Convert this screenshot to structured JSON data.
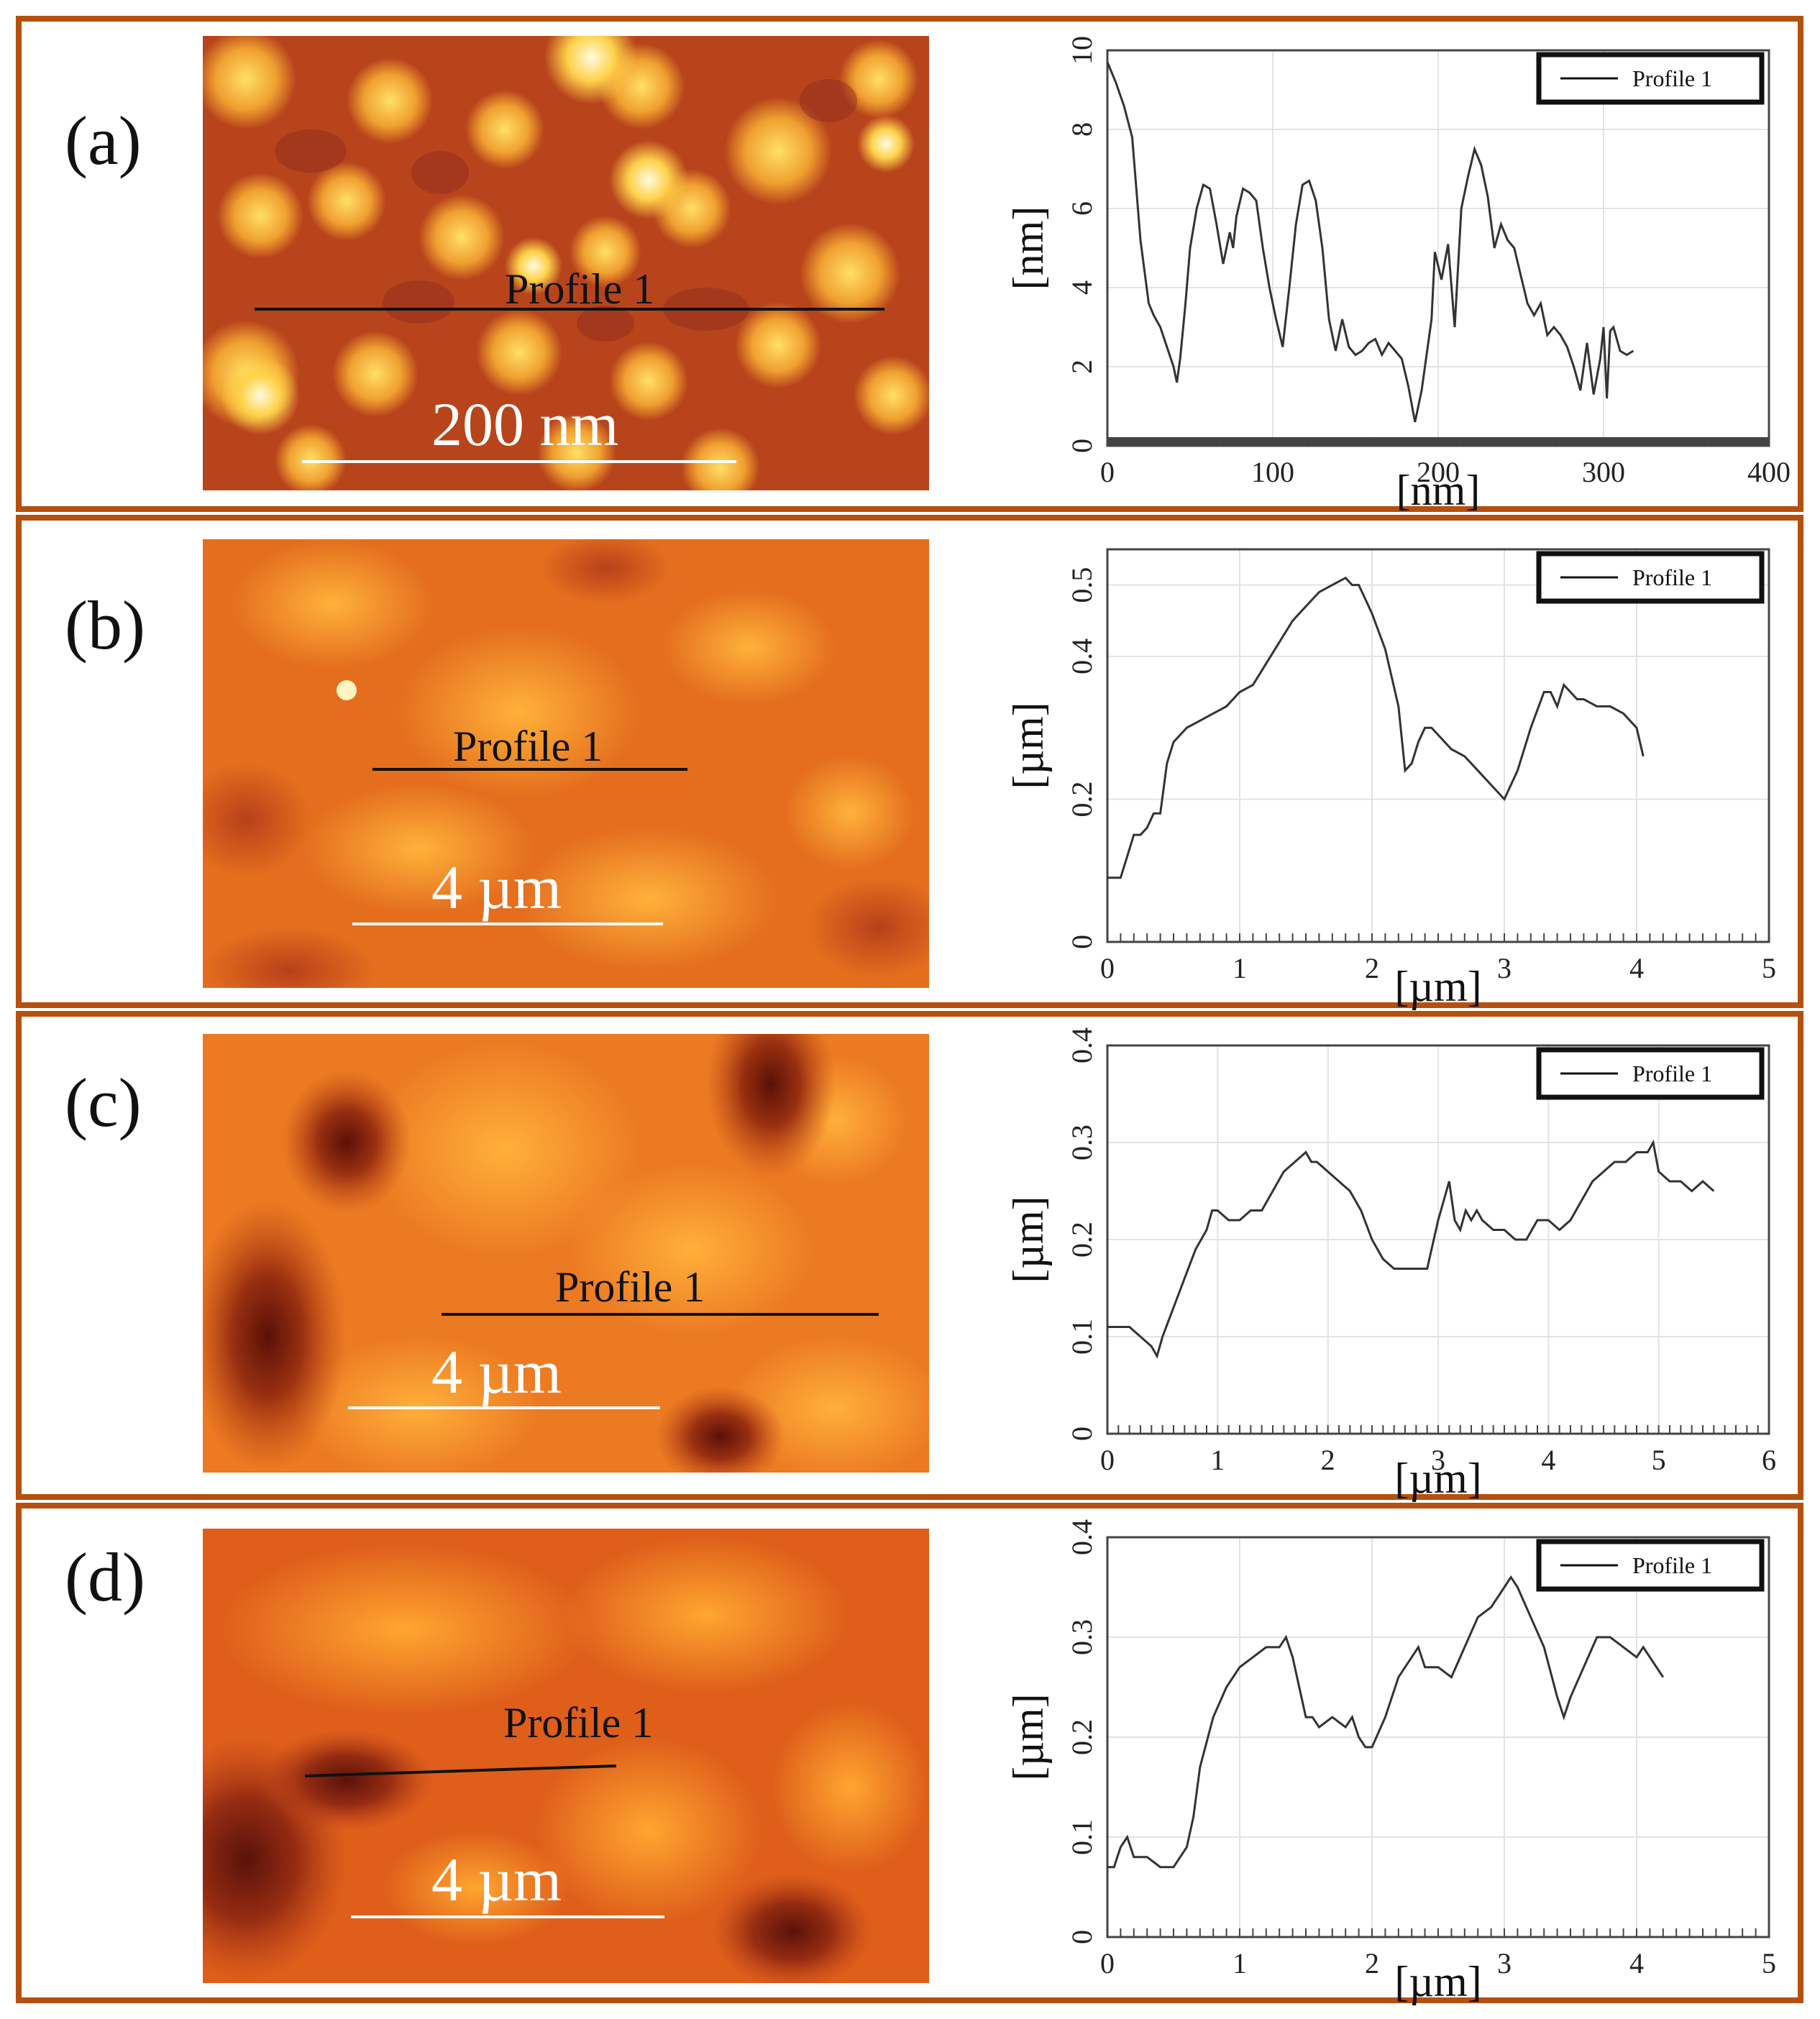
{
  "colors": {
    "frame": "#b5500f",
    "line": "#333333",
    "grid": "#e3e3e3"
  },
  "chart_data": [
    {
      "type": "line",
      "panel": "(a)",
      "profile_label": "Profile 1",
      "scale_bar": "200 nm",
      "xlabel": "[nm]",
      "ylabel": "[nm]",
      "xlim": [
        0,
        400
      ],
      "ylim": [
        0,
        10
      ],
      "xticks": [
        "0",
        "100",
        "200",
        "300",
        "400"
      ],
      "yticks": [
        "0",
        "2",
        "4",
        "6",
        "8",
        "10"
      ],
      "legend": "Profile 1",
      "series": [
        {
          "name": "Profile 1",
          "x": [
            0,
            5,
            10,
            15,
            20,
            25,
            28,
            32,
            36,
            40,
            42,
            44,
            47,
            50,
            54,
            58,
            62,
            66,
            70,
            74,
            76,
            78,
            82,
            86,
            90,
            94,
            98,
            102,
            106,
            110,
            114,
            118,
            122,
            126,
            130,
            134,
            138,
            142,
            146,
            150,
            154,
            158,
            162,
            166,
            170,
            174,
            178,
            182,
            186,
            190,
            194,
            196,
            198,
            202,
            206,
            210,
            212,
            214,
            218,
            222,
            226,
            230,
            234,
            238,
            242,
            246,
            250,
            254,
            258,
            262,
            266,
            270,
            274,
            278,
            282,
            286,
            290,
            294,
            298,
            300,
            302,
            304,
            306,
            308,
            310,
            314,
            318
          ],
          "y": [
            9.7,
            9.2,
            8.6,
            7.8,
            5.2,
            3.6,
            3.3,
            3.0,
            2.5,
            2.0,
            1.6,
            2.2,
            3.5,
            5.0,
            6.0,
            6.6,
            6.5,
            5.6,
            4.6,
            5.4,
            5.0,
            5.8,
            6.5,
            6.4,
            6.2,
            5.0,
            4.0,
            3.2,
            2.5,
            4.0,
            5.6,
            6.6,
            6.7,
            6.2,
            5.0,
            3.2,
            2.4,
            3.2,
            2.5,
            2.3,
            2.4,
            2.6,
            2.7,
            2.3,
            2.6,
            2.4,
            2.2,
            1.5,
            0.6,
            1.4,
            2.6,
            3.2,
            4.9,
            4.2,
            5.1,
            3.0,
            4.5,
            6.0,
            6.8,
            7.5,
            7.1,
            6.3,
            5.0,
            5.6,
            5.2,
            5.0,
            4.3,
            3.6,
            3.3,
            3.6,
            2.8,
            3.0,
            2.8,
            2.5,
            2.0,
            1.4,
            2.6,
            1.3,
            2.2,
            3.0,
            1.2,
            2.9,
            3.0,
            2.7,
            2.4,
            2.3,
            2.4
          ]
        }
      ]
    },
    {
      "type": "line",
      "panel": "(b)",
      "profile_label": "Profile 1",
      "scale_bar": "4 µm",
      "xlabel": "[µm]",
      "ylabel": "[µm]",
      "xlim": [
        0,
        5
      ],
      "ylim": [
        0,
        0.55
      ],
      "xticks": [
        "0",
        "1",
        "2",
        "3",
        "4",
        "5"
      ],
      "yticks": [
        "0",
        "0.2",
        "0.4",
        "0.5"
      ],
      "legend": "Profile 1",
      "series": [
        {
          "name": "Profile 1",
          "x": [
            0,
            0.1,
            0.15,
            0.2,
            0.25,
            0.3,
            0.35,
            0.4,
            0.45,
            0.5,
            0.55,
            0.6,
            0.7,
            0.8,
            0.9,
            1.0,
            1.1,
            1.2,
            1.3,
            1.4,
            1.5,
            1.6,
            1.7,
            1.8,
            1.85,
            1.9,
            1.95,
            2.0,
            2.1,
            2.2,
            2.25,
            2.3,
            2.35,
            2.4,
            2.45,
            2.5,
            2.6,
            2.7,
            2.8,
            2.9,
            3.0,
            3.1,
            3.2,
            3.3,
            3.35,
            3.4,
            3.45,
            3.5,
            3.55,
            3.6,
            3.7,
            3.8,
            3.9,
            4.0,
            4.05
          ],
          "y": [
            0.09,
            0.09,
            0.12,
            0.15,
            0.15,
            0.16,
            0.18,
            0.18,
            0.25,
            0.28,
            0.29,
            0.3,
            0.31,
            0.32,
            0.33,
            0.35,
            0.36,
            0.39,
            0.42,
            0.45,
            0.47,
            0.49,
            0.5,
            0.51,
            0.5,
            0.5,
            0.48,
            0.46,
            0.41,
            0.33,
            0.24,
            0.25,
            0.28,
            0.3,
            0.3,
            0.29,
            0.27,
            0.26,
            0.24,
            0.22,
            0.2,
            0.24,
            0.3,
            0.35,
            0.35,
            0.33,
            0.36,
            0.35,
            0.34,
            0.34,
            0.33,
            0.33,
            0.32,
            0.3,
            0.26
          ]
        }
      ]
    },
    {
      "type": "line",
      "panel": "(c)",
      "profile_label": "Profile 1",
      "scale_bar": "4 µm",
      "xlabel": "[µm]",
      "ylabel": "[µm]",
      "xlim": [
        0,
        6
      ],
      "ylim": [
        0,
        0.4
      ],
      "xticks": [
        "0",
        "1",
        "2",
        "3",
        "4",
        "5",
        "6"
      ],
      "yticks": [
        "0",
        "0.1",
        "0.2",
        "0.3",
        "0.4"
      ],
      "legend": "Profile 1",
      "series": [
        {
          "name": "Profile 1",
          "x": [
            0,
            0.1,
            0.2,
            0.3,
            0.4,
            0.45,
            0.5,
            0.6,
            0.7,
            0.8,
            0.9,
            0.95,
            1.0,
            1.1,
            1.2,
            1.3,
            1.4,
            1.5,
            1.6,
            1.7,
            1.8,
            1.85,
            1.9,
            2.0,
            2.1,
            2.2,
            2.3,
            2.4,
            2.5,
            2.6,
            2.7,
            2.8,
            2.9,
            3.0,
            3.05,
            3.1,
            3.15,
            3.2,
            3.25,
            3.3,
            3.35,
            3.4,
            3.5,
            3.6,
            3.7,
            3.8,
            3.9,
            4.0,
            4.1,
            4.2,
            4.3,
            4.4,
            4.5,
            4.6,
            4.7,
            4.8,
            4.9,
            4.95,
            5.0,
            5.1,
            5.2,
            5.3,
            5.4,
            5.5
          ],
          "y": [
            0.11,
            0.11,
            0.11,
            0.1,
            0.09,
            0.08,
            0.1,
            0.13,
            0.16,
            0.19,
            0.21,
            0.23,
            0.23,
            0.22,
            0.22,
            0.23,
            0.23,
            0.25,
            0.27,
            0.28,
            0.29,
            0.28,
            0.28,
            0.27,
            0.26,
            0.25,
            0.23,
            0.2,
            0.18,
            0.17,
            0.17,
            0.17,
            0.17,
            0.22,
            0.24,
            0.26,
            0.22,
            0.21,
            0.23,
            0.22,
            0.23,
            0.22,
            0.21,
            0.21,
            0.2,
            0.2,
            0.22,
            0.22,
            0.21,
            0.22,
            0.24,
            0.26,
            0.27,
            0.28,
            0.28,
            0.29,
            0.29,
            0.3,
            0.27,
            0.26,
            0.26,
            0.25,
            0.26,
            0.25
          ]
        }
      ]
    },
    {
      "type": "line",
      "panel": "(d)",
      "profile_label": "Profile 1",
      "scale_bar": "4 µm",
      "xlabel": "[µm]",
      "ylabel": "[µm]",
      "xlim": [
        0,
        5
      ],
      "ylim": [
        0,
        0.4
      ],
      "xticks": [
        "0",
        "1",
        "2",
        "3",
        "4",
        "5"
      ],
      "yticks": [
        "0",
        "0.1",
        "0.2",
        "0.3",
        "0.4"
      ],
      "legend": "Profile 1",
      "series": [
        {
          "name": "Profile 1",
          "x": [
            0,
            0.05,
            0.1,
            0.15,
            0.2,
            0.25,
            0.3,
            0.4,
            0.5,
            0.55,
            0.6,
            0.65,
            0.7,
            0.8,
            0.9,
            1.0,
            1.1,
            1.2,
            1.3,
            1.35,
            1.4,
            1.45,
            1.5,
            1.55,
            1.6,
            1.7,
            1.8,
            1.85,
            1.9,
            1.95,
            2.0,
            2.1,
            2.2,
            2.3,
            2.35,
            2.4,
            2.45,
            2.5,
            2.6,
            2.7,
            2.8,
            2.9,
            3.0,
            3.05,
            3.1,
            3.2,
            3.3,
            3.4,
            3.45,
            3.5,
            3.6,
            3.7,
            3.8,
            3.9,
            4.0,
            4.05,
            4.1,
            4.15,
            4.2
          ],
          "y": [
            0.07,
            0.07,
            0.09,
            0.1,
            0.08,
            0.08,
            0.08,
            0.07,
            0.07,
            0.08,
            0.09,
            0.12,
            0.17,
            0.22,
            0.25,
            0.27,
            0.28,
            0.29,
            0.29,
            0.3,
            0.28,
            0.25,
            0.22,
            0.22,
            0.21,
            0.22,
            0.21,
            0.22,
            0.2,
            0.19,
            0.19,
            0.22,
            0.26,
            0.28,
            0.29,
            0.27,
            0.27,
            0.27,
            0.26,
            0.29,
            0.32,
            0.33,
            0.35,
            0.36,
            0.35,
            0.32,
            0.29,
            0.24,
            0.22,
            0.24,
            0.27,
            0.3,
            0.3,
            0.29,
            0.28,
            0.29,
            0.28,
            0.27,
            0.26
          ]
        }
      ]
    }
  ]
}
